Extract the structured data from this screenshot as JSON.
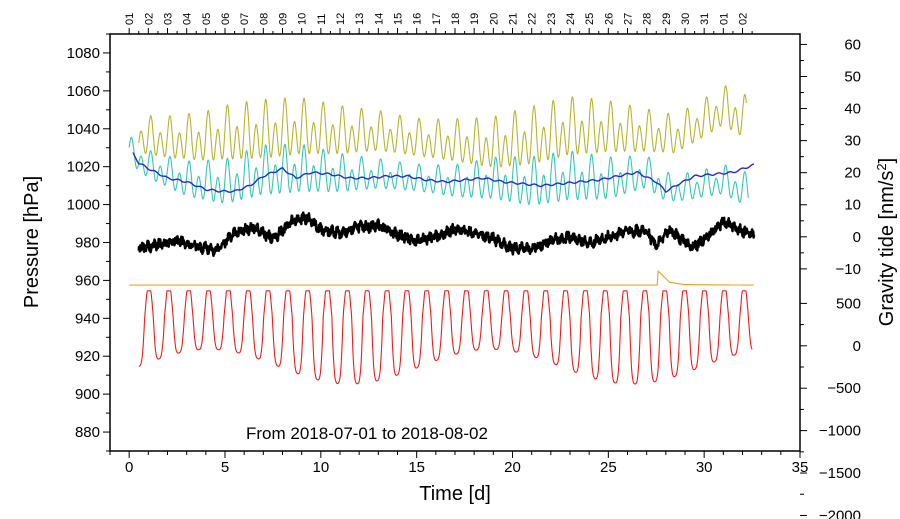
{
  "chart_data": {
    "type": "line",
    "annotation": "From 2018-07-01 to 2018-08-02",
    "xlabel": "Time [d]",
    "ylabel_left": "Pressure [hPa]",
    "ylabel_right_prefix": "Gravity tide [nm/s",
    "ylabel_right_sup": "2",
    "ylabel_right_suffix": "]",
    "xlim": [
      -1,
      35
    ],
    "ylim_left": [
      870,
      1090
    ],
    "xticks": [
      0,
      5,
      10,
      15,
      20,
      25,
      30,
      35
    ],
    "xticks_minor_step": 1,
    "yticks_left": [
      880,
      900,
      920,
      940,
      960,
      980,
      1000,
      1020,
      1040,
      1060,
      1080
    ],
    "top_day_labels": [
      "01",
      "02",
      "03",
      "04",
      "05",
      "06",
      "07",
      "08",
      "09",
      "10",
      "11",
      "12",
      "13",
      "14",
      "15",
      "16",
      "17",
      "18",
      "19",
      "20",
      "21",
      "22",
      "23",
      "24",
      "25",
      "26",
      "27",
      "28",
      "29",
      "30",
      "31",
      "01",
      "02"
    ],
    "top_day_start_x": 0.0,
    "right_axis_upper": {
      "label_ticks": [
        -10,
        0,
        10,
        20,
        30,
        40,
        50,
        60
      ],
      "map": {
        "value_a": 0,
        "pressure_a": 983,
        "value_b": 60,
        "pressure_b": 1084.5
      }
    },
    "right_axis_lower": {
      "label_ticks": [
        -2000,
        -1500,
        -1000,
        -500,
        0,
        500
      ],
      "map": {
        "value_a": 0,
        "pressure_a": 925.5,
        "value_b": -2000,
        "pressure_b": 836
      }
    },
    "series": [
      {
        "name": "gravity-yellow",
        "color": "#b8b430",
        "kind": "oscillating",
        "anchors": [
          [
            0.5,
            31
          ],
          [
            2,
            30
          ],
          [
            4,
            30
          ],
          [
            5,
            31
          ],
          [
            7,
            32
          ],
          [
            9,
            33
          ],
          [
            11,
            32
          ],
          [
            13,
            32
          ],
          [
            15,
            30
          ],
          [
            17,
            29
          ],
          [
            19,
            28
          ],
          [
            21,
            30
          ],
          [
            23,
            33
          ],
          [
            25,
            33
          ],
          [
            27,
            32
          ],
          [
            28.5,
            31
          ],
          [
            30,
            36
          ],
          [
            31,
            40
          ],
          [
            32.2,
            36
          ]
        ],
        "amplitude": 7,
        "period": 0.5,
        "modulation": 0.55
      },
      {
        "name": "gravity-cyan",
        "color": "#35c8b8",
        "kind": "oscillating",
        "anchors": [
          [
            0,
            1028
          ],
          [
            1,
            1020
          ],
          [
            3,
            1012
          ],
          [
            5,
            1010
          ],
          [
            7,
            1016
          ],
          [
            9,
            1017
          ],
          [
            11,
            1015
          ],
          [
            13,
            1015
          ],
          [
            15,
            1013
          ],
          [
            17,
            1011
          ],
          [
            19,
            1012
          ],
          [
            21,
            1010
          ],
          [
            23,
            1013
          ],
          [
            25,
            1012
          ],
          [
            27,
            1016
          ],
          [
            28,
            1008
          ],
          [
            29,
            1008
          ],
          [
            31,
            1012
          ],
          [
            32.3,
            1006
          ]
        ],
        "amplitude": 10,
        "period": 0.5,
        "modulation": 0.7
      },
      {
        "name": "pressure-smoothed-blue",
        "color": "#1f2bd6",
        "kind": "smooth",
        "anchors": [
          [
            0.2,
            1027
          ],
          [
            0.5,
            1022
          ],
          [
            1,
            1019
          ],
          [
            2,
            1014
          ],
          [
            3,
            1012
          ],
          [
            4,
            1008
          ],
          [
            4.8,
            1007
          ],
          [
            5.5,
            1007
          ],
          [
            6.3,
            1010
          ],
          [
            7,
            1015
          ],
          [
            8,
            1019
          ],
          [
            8.7,
            1014
          ],
          [
            9.5,
            1017
          ],
          [
            10.5,
            1016
          ],
          [
            11.5,
            1014
          ],
          [
            12.5,
            1014
          ],
          [
            13.5,
            1015
          ],
          [
            14.5,
            1015
          ],
          [
            15.5,
            1013
          ],
          [
            16.5,
            1012
          ],
          [
            17.5,
            1013
          ],
          [
            18.5,
            1014
          ],
          [
            19.5,
            1012
          ],
          [
            20.5,
            1011
          ],
          [
            21.5,
            1010
          ],
          [
            22.5,
            1011
          ],
          [
            23.5,
            1012
          ],
          [
            24.5,
            1013
          ],
          [
            25.5,
            1015
          ],
          [
            26.5,
            1017
          ],
          [
            27.5,
            1012
          ],
          [
            28,
            1007
          ],
          [
            28.7,
            1011
          ],
          [
            29.5,
            1015
          ],
          [
            30.5,
            1016
          ],
          [
            31.5,
            1017
          ],
          [
            32.6,
            1021
          ]
        ],
        "amplitude": 1.2,
        "period": 0.6,
        "modulation": 0
      },
      {
        "name": "pressure-black",
        "color": "#000000",
        "kind": "noisy",
        "anchors": [
          [
            0.5,
            977
          ],
          [
            1.5,
            979
          ],
          [
            2.5,
            981
          ],
          [
            3.5,
            978
          ],
          [
            4.5,
            976
          ],
          [
            5.5,
            985
          ],
          [
            6.5,
            988
          ],
          [
            7.5,
            982
          ],
          [
            8.5,
            991
          ],
          [
            9.3,
            993
          ],
          [
            10,
            987
          ],
          [
            11,
            985
          ],
          [
            12,
            988
          ],
          [
            13,
            989
          ],
          [
            14,
            984
          ],
          [
            15,
            981
          ],
          [
            16,
            983
          ],
          [
            17,
            987
          ],
          [
            18,
            985
          ],
          [
            19,
            982
          ],
          [
            20,
            977
          ],
          [
            21,
            977
          ],
          [
            22,
            981
          ],
          [
            23,
            983
          ],
          [
            24,
            980
          ],
          [
            25,
            983
          ],
          [
            26,
            986
          ],
          [
            27,
            986
          ],
          [
            27.5,
            978
          ],
          [
            28.2,
            987
          ],
          [
            29,
            980
          ],
          [
            29.5,
            978
          ],
          [
            30.5,
            986
          ],
          [
            31,
            991
          ],
          [
            32,
            986
          ],
          [
            32.6,
            984
          ]
        ],
        "amplitude": 2.2,
        "period": 0.3,
        "modulation": 0
      },
      {
        "name": "signal-orange",
        "color": "#f0a020",
        "kind": "step",
        "anchors": [
          [
            0,
            957.5
          ],
          [
            27.55,
            957.5
          ],
          [
            27.6,
            965
          ],
          [
            28.2,
            959
          ],
          [
            29,
            957.8
          ],
          [
            32.6,
            957.5
          ]
        ],
        "amplitude": 0,
        "period": 1,
        "modulation": 0
      },
      {
        "name": "gravity-tide-red",
        "color": "#ee1c1c",
        "kind": "tide",
        "anchors": [
          [
            0.5,
            941
          ],
          [
            32.5,
            941
          ]
        ],
        "amplitude": 15,
        "period": 1.035,
        "modulation": 0
      }
    ]
  }
}
